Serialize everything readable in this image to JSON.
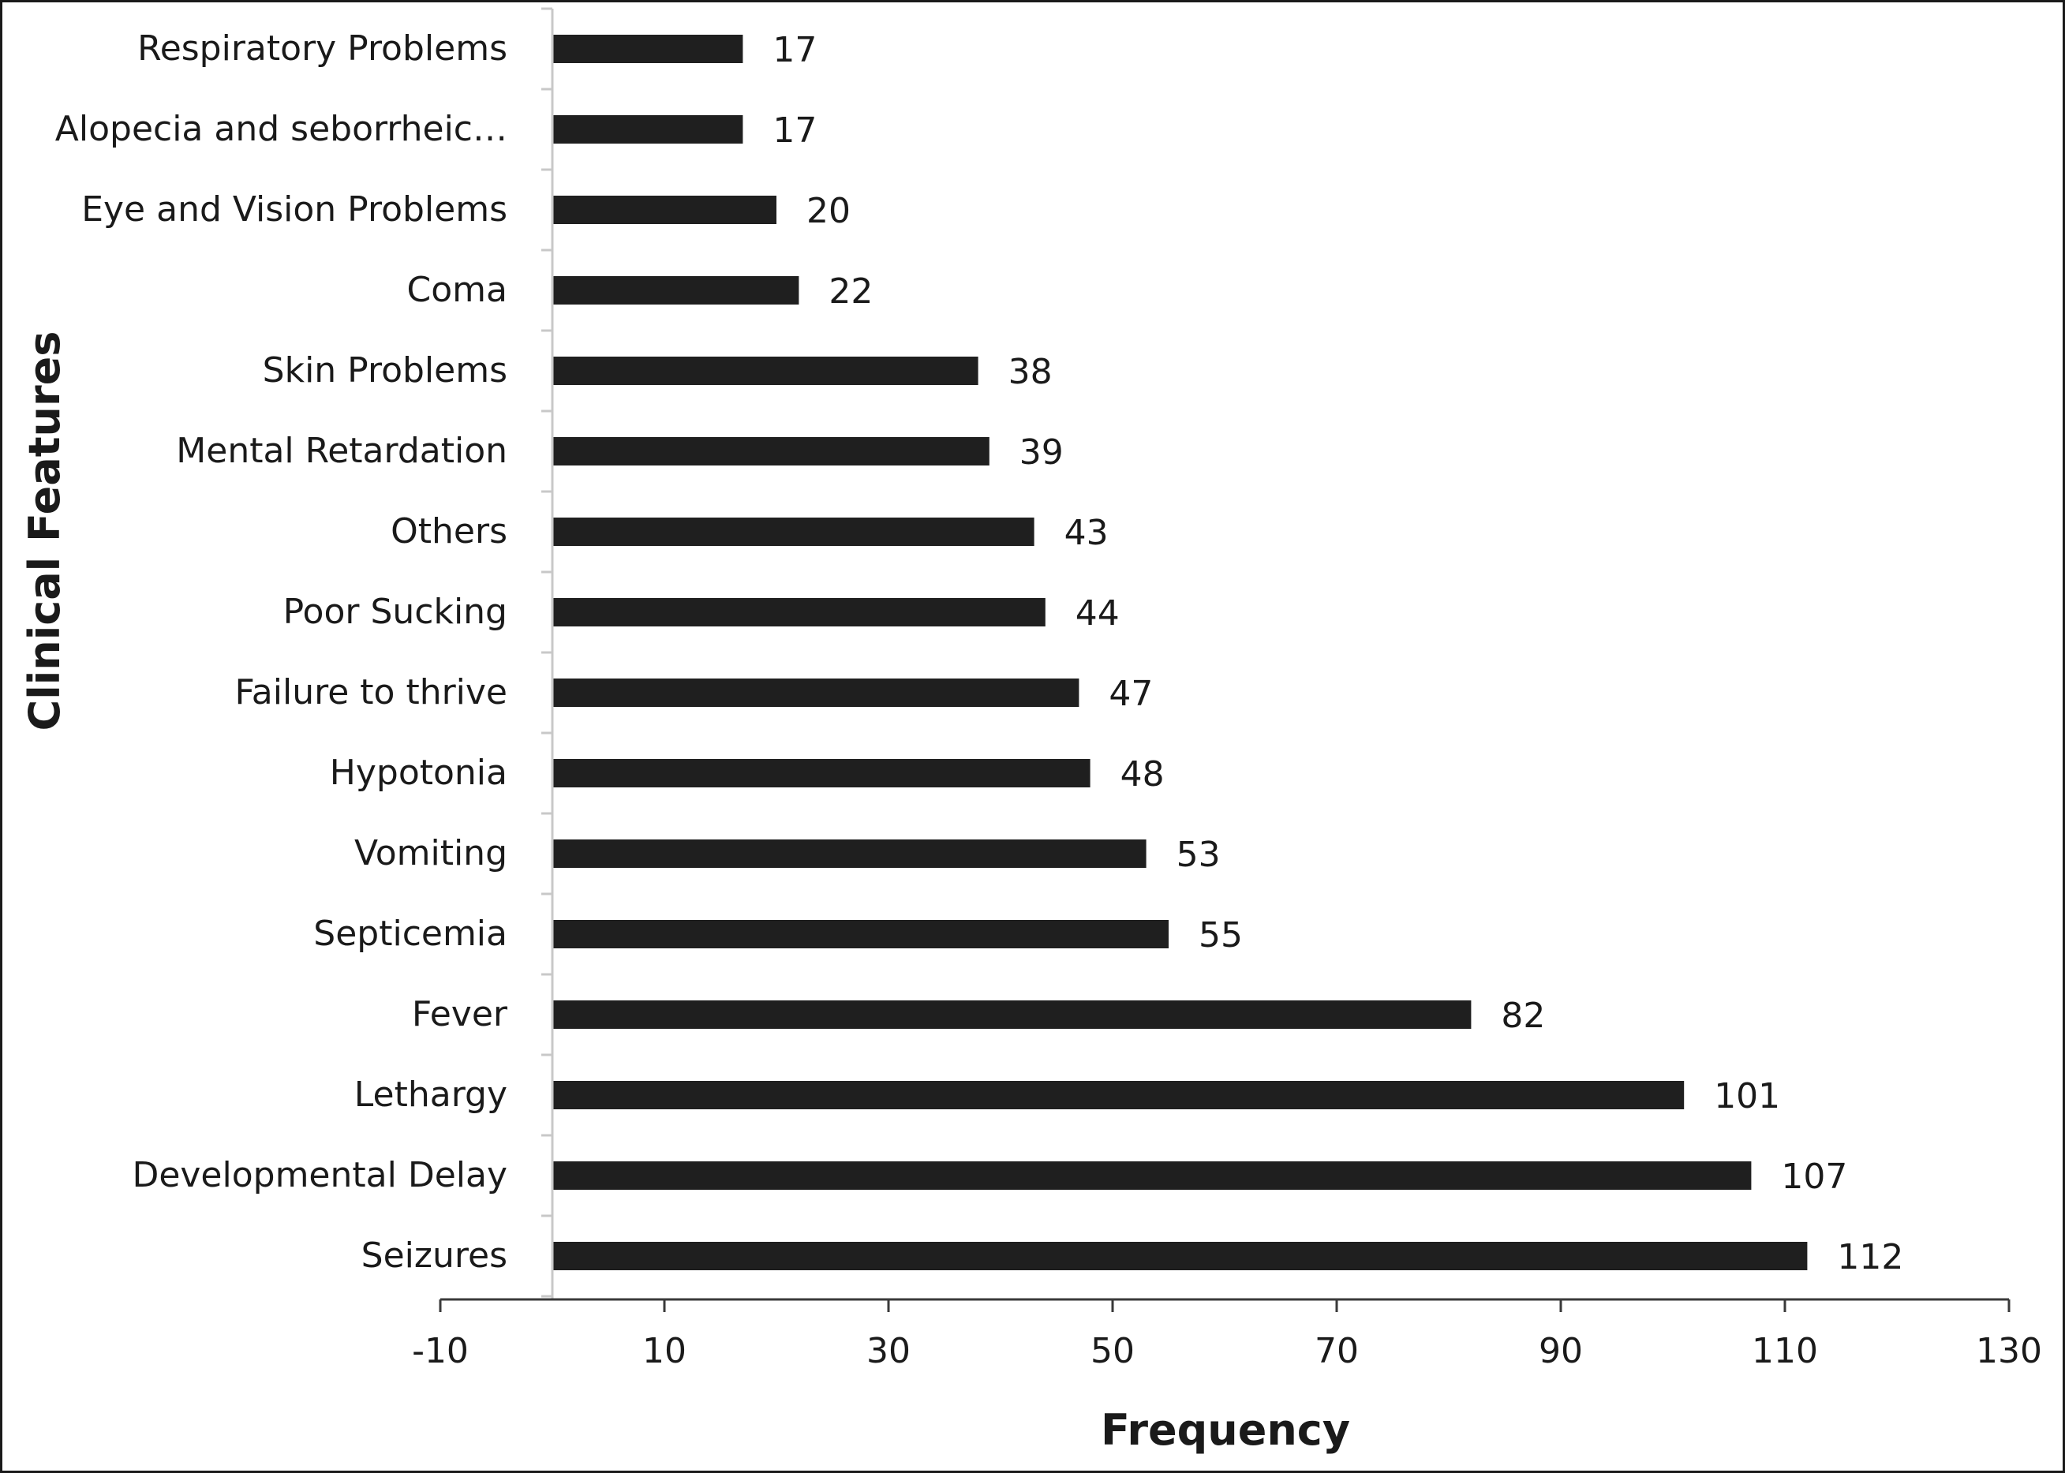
{
  "chart_data": {
    "type": "bar",
    "orientation": "horizontal",
    "xlabel": "Frequency",
    "ylabel": "Clinical Features",
    "categories": [
      "Respiratory Problems",
      "Alopecia and seborrheic…",
      "Eye and Vision Problems",
      "Coma",
      "Skin Problems",
      "Mental Retardation",
      "Others",
      "Poor Sucking",
      "Failure to thrive",
      "Hypotonia",
      "Vomiting",
      "Septicemia",
      "Fever",
      "Lethargy",
      "Developmental Delay",
      "Seizures"
    ],
    "values": [
      17,
      17,
      20,
      22,
      38,
      39,
      43,
      44,
      47,
      48,
      53,
      55,
      82,
      101,
      107,
      112
    ],
    "value_labels": [
      "17",
      "17",
      "20",
      "22",
      "38",
      "39",
      "43",
      "44",
      "47",
      "48",
      "53",
      "55",
      "82",
      "101",
      "107",
      "112"
    ],
    "xlim": [
      -10,
      130
    ],
    "xticks": [
      -10,
      10,
      30,
      50,
      70,
      90,
      110,
      130
    ],
    "xtick_labels": [
      "-10",
      "10",
      "30",
      "50",
      "70",
      "90",
      "110",
      "130"
    ],
    "grid": false,
    "legend": "none",
    "bar_color": "#1f1f1f",
    "axis_color": "#c8c8c8",
    "text_color": "#1a1a1a"
  }
}
